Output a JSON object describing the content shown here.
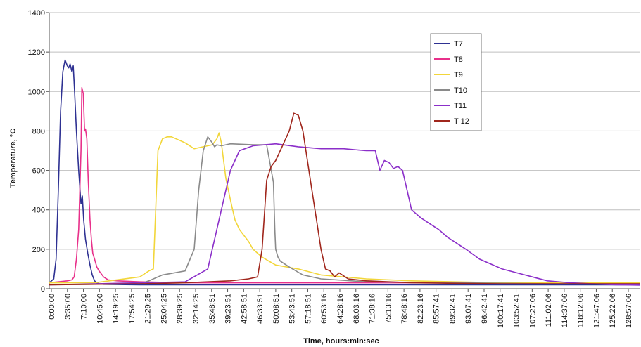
{
  "chart_data": {
    "type": "line",
    "xlabel": "Time, hours:min:sec",
    "ylabel": "Temperature, °C",
    "ylim": [
      0,
      1400
    ],
    "yticks": [
      0,
      200,
      400,
      600,
      800,
      1000,
      1200,
      1400
    ],
    "grid": "horizontal",
    "legend_position": "top-right",
    "x_tick_labels": [
      "0:00:00",
      "3:35:00",
      "7:10:00",
      "10:45:00",
      "14:19:25",
      "17:54:25",
      "21:29:25",
      "25:04:25",
      "28:39:25",
      "32:14:25",
      "35:48:51",
      "39:23:51",
      "42:58:51",
      "46:33:51",
      "50:08:51",
      "53:43:51",
      "57:18:51",
      "60:53:16",
      "64:28:16",
      "68:03:16",
      "71:38:16",
      "75:13:16",
      "78:48:16",
      "82:23:16",
      "85:57:41",
      "89:32:41",
      "93:07:41",
      "96:42:41",
      "100:17:41",
      "103:52:41",
      "107:27:06",
      "111:02:06",
      "114:37:06",
      "118:12:06",
      "121:47:06",
      "125:22:06",
      "128:57:06"
    ],
    "x_unit": "hours",
    "xlim_hours": [
      0,
      130.5
    ],
    "series": [
      {
        "name": "T7",
        "color": "#2e3192",
        "x": [
          0,
          1,
          1.5,
          2,
          2.5,
          3,
          3.5,
          4,
          4.3,
          4.6,
          5,
          5.3,
          5.6,
          6,
          6.5,
          7,
          7.3,
          7.6,
          8,
          8.5,
          9,
          9.5,
          10,
          10.5,
          11,
          12,
          20,
          30,
          40,
          50,
          60,
          70,
          80,
          90,
          100,
          110,
          120,
          130.5
        ],
        "y": [
          30,
          50,
          150,
          500,
          900,
          1100,
          1160,
          1130,
          1120,
          1140,
          1100,
          1130,
          1000,
          800,
          600,
          430,
          470,
          350,
          250,
          180,
          120,
          70,
          40,
          30,
          25,
          22,
          20,
          20,
          20,
          20,
          20,
          20,
          20,
          20,
          20,
          20,
          20,
          20
        ]
      },
      {
        "name": "T8",
        "color": "#e8308a",
        "x": [
          0,
          2,
          4,
          5,
          5.5,
          6,
          6.5,
          7,
          7.2,
          7.5,
          7.8,
          8,
          8.3,
          8.6,
          9,
          9.3,
          9.6,
          10,
          10.5,
          11,
          12,
          13,
          15,
          20,
          30,
          50,
          80,
          130.5
        ],
        "y": [
          30,
          35,
          40,
          45,
          60,
          150,
          300,
          700,
          1020,
          990,
          800,
          810,
          760,
          550,
          350,
          250,
          180,
          150,
          110,
          90,
          60,
          45,
          40,
          35,
          30,
          30,
          30,
          30
        ]
      },
      {
        "name": "T9",
        "color": "#f2d63a",
        "x": [
          0,
          10,
          20,
          22,
          23,
          24,
          25,
          26,
          27,
          30,
          32,
          34,
          36,
          37,
          37.5,
          38,
          39,
          40,
          41,
          42,
          43,
          44,
          45,
          47,
          50,
          55,
          60,
          70,
          80,
          100,
          130.5
        ],
        "y": [
          30,
          30,
          60,
          90,
          100,
          700,
          760,
          770,
          770,
          740,
          710,
          720,
          730,
          760,
          790,
          740,
          560,
          450,
          350,
          300,
          270,
          240,
          200,
          160,
          120,
          100,
          70,
          50,
          40,
          30,
          30
        ]
      },
      {
        "name": "T10",
        "color": "#8a8a8a",
        "x": [
          0,
          20,
          22,
          25,
          30,
          32,
          33,
          34,
          35,
          36,
          36.5,
          37,
          38,
          39,
          40,
          45,
          48,
          49.5,
          49.8,
          50,
          50.5,
          51,
          53,
          56,
          60,
          70,
          90,
          110,
          130.5
        ],
        "y": [
          20,
          25,
          40,
          70,
          90,
          200,
          500,
          700,
          770,
          740,
          720,
          730,
          725,
          730,
          735,
          730,
          730,
          540,
          300,
          200,
          160,
          140,
          110,
          70,
          50,
          35,
          30,
          25,
          25
        ]
      },
      {
        "name": "T11",
        "color": "#8b2fc9",
        "x": [
          0,
          10,
          20,
          30,
          35,
          38,
          40,
          42,
          45,
          50,
          55,
          60,
          65,
          70,
          72,
          73,
          74,
          75,
          76,
          77,
          78,
          79,
          80,
          81,
          82,
          84,
          86,
          88,
          90,
          92,
          95,
          100,
          105,
          110,
          115,
          120,
          125,
          130.5
        ],
        "y": [
          20,
          25,
          30,
          35,
          100,
          400,
          600,
          700,
          725,
          735,
          720,
          710,
          710,
          700,
          700,
          600,
          650,
          640,
          610,
          620,
          600,
          500,
          400,
          380,
          360,
          330,
          300,
          260,
          230,
          200,
          150,
          100,
          70,
          40,
          30,
          25,
          20,
          18
        ]
      },
      {
        "name": "T 12",
        "color": "#a0261c",
        "x": [
          0,
          20,
          30,
          40,
          44,
          46,
          47,
          48,
          49,
          50,
          51,
          52,
          53,
          54,
          55,
          56,
          57,
          58,
          59,
          60,
          61,
          62,
          63,
          64,
          66,
          70,
          80,
          100,
          130.5
        ],
        "y": [
          20,
          25,
          30,
          40,
          50,
          60,
          200,
          550,
          620,
          650,
          700,
          750,
          800,
          890,
          880,
          800,
          650,
          500,
          350,
          200,
          100,
          90,
          60,
          80,
          50,
          40,
          30,
          25,
          25
        ]
      }
    ]
  }
}
